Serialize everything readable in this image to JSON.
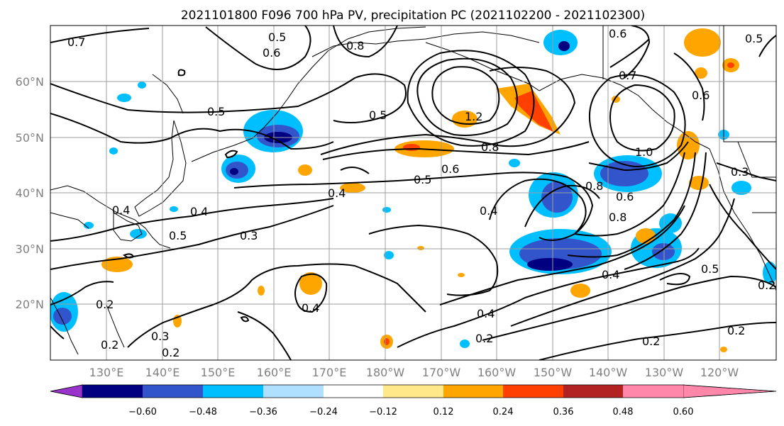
{
  "title": "2021101800 F096 700 hPa PV, precipitation PC (2021102200 - 2021102300)",
  "lat_labels": [
    "60°N",
    "50°N",
    "40°N",
    "30°N",
    "20°N"
  ],
  "lon_labels": [
    "130°E",
    "140°E",
    "150°E",
    "160°E",
    "170°E",
    "180°W",
    "170°W",
    "160°W",
    "150°W",
    "140°W",
    "130°W",
    "120°W"
  ],
  "colorbar": {
    "ticks": [
      "−0.60",
      "−0.48",
      "−0.36",
      "−0.24",
      "−0.12",
      "0.12",
      "0.24",
      "0.36",
      "0.48",
      "0.60"
    ],
    "colors": [
      "#9933cc",
      "#000080",
      "#3355cc",
      "#00bfff",
      "#b0e0ff",
      "#ffffff",
      "#ffe88a",
      "#ffa500",
      "#ff4000",
      "#b22222",
      "#ff88aa"
    ]
  },
  "contour_labels": [
    "0.7",
    "0.5",
    "0.6",
    "0.8",
    "0.5",
    "0.5",
    "1.2",
    "0.8",
    "0.6",
    "0.5",
    "0.4",
    "0.4",
    "0.4",
    "0.5",
    "0.3",
    "0.4",
    "0.2",
    "0.3",
    "0.2",
    "0.4",
    "0.2",
    "0.4",
    "0.8",
    "0.6",
    "1.0",
    "0.8",
    "0.6",
    "0.3",
    "0.5",
    "0.2",
    "0.2",
    "0.6",
    "0.5",
    "0.7",
    "0.4",
    "0.2",
    "0.2"
  ]
}
